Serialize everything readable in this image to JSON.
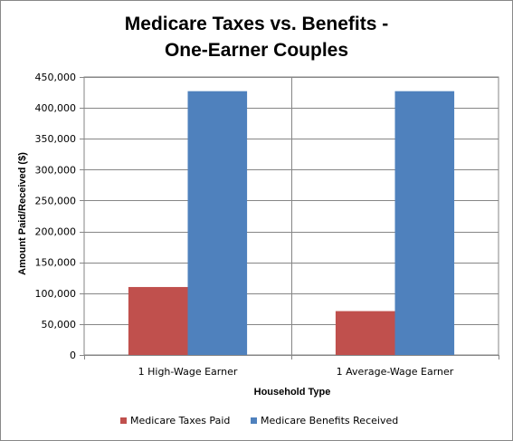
{
  "chart_data": {
    "type": "bar",
    "title": [
      "Medicare Taxes vs. Benefits -",
      "One-Earner Couples"
    ],
    "xlabel": "Household Type",
    "ylabel": "Amount Paid/Received  ($)",
    "categories": [
      "1 High-Wage Earner",
      "1 Average-Wage Earner"
    ],
    "series": [
      {
        "name": "Medicare Taxes Paid",
        "color": "#C0504D",
        "values": [
          110000,
          71000
        ]
      },
      {
        "name": "Medicare Benefits Received",
        "color": "#4F81BD",
        "values": [
          427000,
          427000
        ]
      }
    ],
    "ylim": [
      0,
      450000
    ],
    "yticks": [
      "0",
      "50,000",
      "100,000",
      "150,000",
      "200,000",
      "250,000",
      "300,000",
      "350,000",
      "400,000",
      "450,000"
    ],
    "ytick_values": [
      0,
      50000,
      100000,
      150000,
      200000,
      250000,
      300000,
      350000,
      400000,
      450000
    ],
    "grid": true,
    "legend_position": "bottom"
  }
}
